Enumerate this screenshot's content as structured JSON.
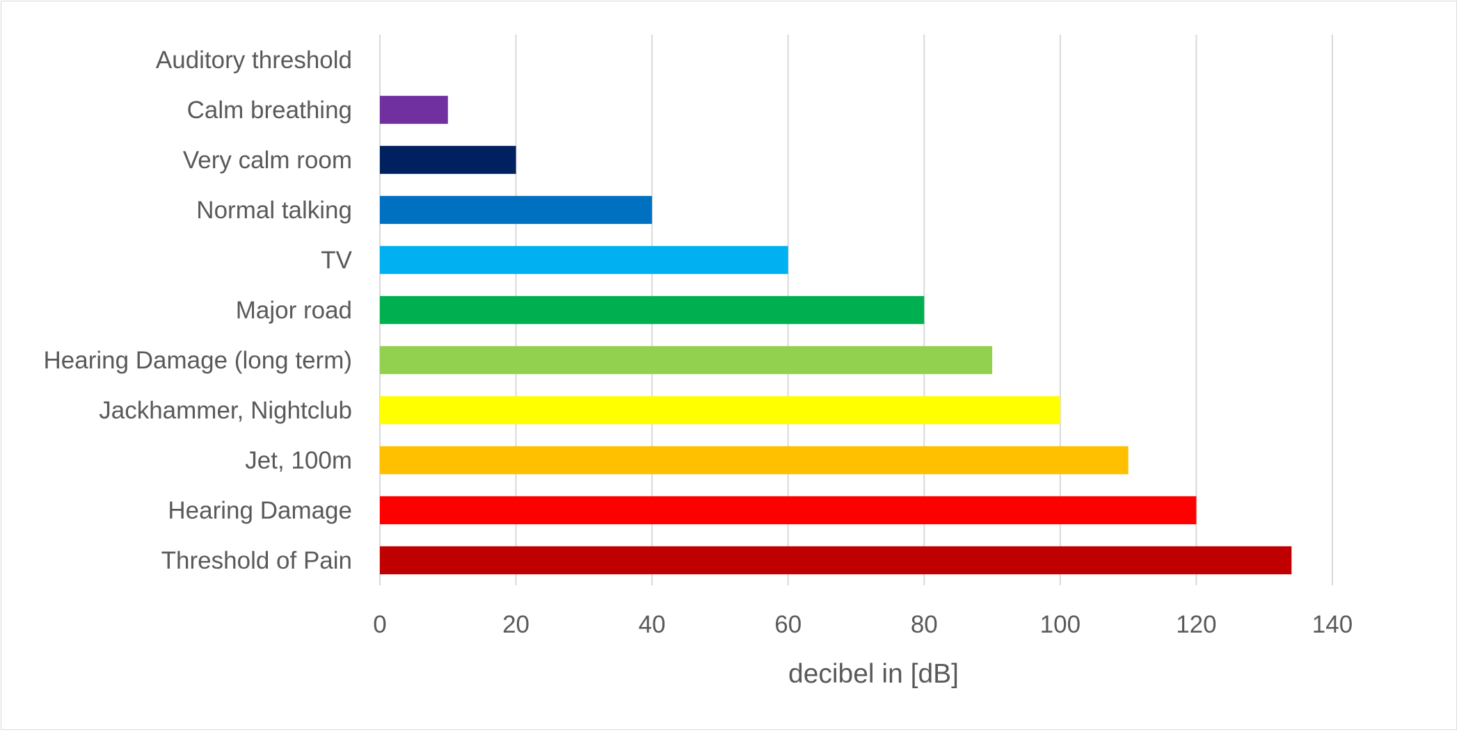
{
  "chart_data": {
    "type": "bar",
    "orientation": "horizontal",
    "categories": [
      "Auditory threshold",
      "Calm breathing",
      "Very calm room",
      "Normal talking",
      "TV",
      "Major road",
      "Hearing Damage (long term)",
      "Jackhammer, Nightclub",
      "Jet, 100m",
      "Hearing Damage",
      "Threshold of Pain"
    ],
    "values": [
      0,
      10,
      20,
      40,
      60,
      80,
      90,
      100,
      110,
      120,
      134
    ],
    "colors": [
      "#ffffff",
      "#7030a0",
      "#002060",
      "#0070c0",
      "#00b0f0",
      "#00b050",
      "#92d050",
      "#ffff00",
      "#ffc000",
      "#ff0000",
      "#c00000"
    ],
    "xlabel": "decibel in [dB]",
    "ylabel": "",
    "title": "",
    "xlim": [
      0,
      140
    ],
    "xticks": [
      0,
      20,
      40,
      60,
      80,
      100,
      120,
      140
    ],
    "grid": "vertical",
    "legend": "none"
  }
}
